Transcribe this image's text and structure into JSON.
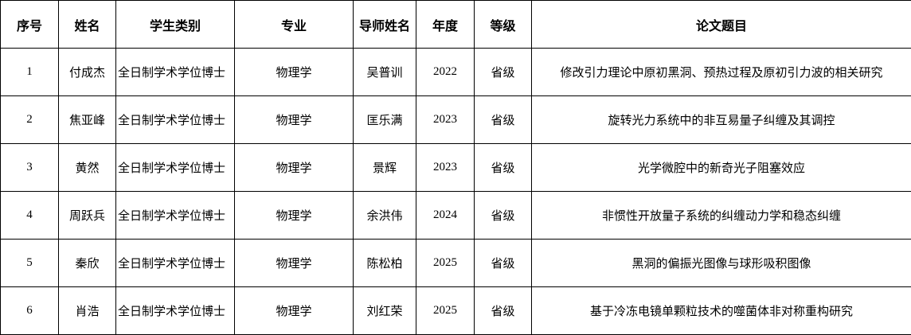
{
  "table": {
    "headers": [
      "序号",
      "姓名",
      "学生类别",
      "专业",
      "导师姓名",
      "年度",
      "等级",
      "论文题目"
    ],
    "rows": [
      {
        "no": "1",
        "name": "付成杰",
        "category": "全日制学术学位博士",
        "major": "物理学",
        "advisor": "吴普训",
        "year": "2022",
        "level": "省级",
        "title": "修改引力理论中原初黑洞、预热过程及原初引力波的相关研究"
      },
      {
        "no": "2",
        "name": "焦亚峰",
        "category": "全日制学术学位博士",
        "major": "物理学",
        "advisor": "匡乐满",
        "year": "2023",
        "level": "省级",
        "title": "旋转光力系统中的非互易量子纠缠及其调控"
      },
      {
        "no": "3",
        "name": "黄然",
        "category": "全日制学术学位博士",
        "major": "物理学",
        "advisor": "景辉",
        "year": "2023",
        "level": "省级",
        "title": "光学微腔中的新奇光子阻塞效应"
      },
      {
        "no": "4",
        "name": "周跃兵",
        "category": "全日制学术学位博士",
        "major": "物理学",
        "advisor": "余洪伟",
        "year": "2024",
        "level": "省级",
        "title": "非惯性开放量子系统的纠缠动力学和稳态纠缠"
      },
      {
        "no": "5",
        "name": "秦欣",
        "category": "全日制学术学位博士",
        "major": "物理学",
        "advisor": "陈松柏",
        "year": "2025",
        "level": "省级",
        "title": "黑洞的偏振光图像与球形吸积图像"
      },
      {
        "no": "6",
        "name": "肖浩",
        "category": "全日制学术学位博士",
        "major": "物理学",
        "advisor": "刘红荣",
        "year": "2025",
        "level": "省级",
        "title": "基于冷冻电镜单颗粒技术的噬菌体非对称重构研究"
      }
    ]
  }
}
